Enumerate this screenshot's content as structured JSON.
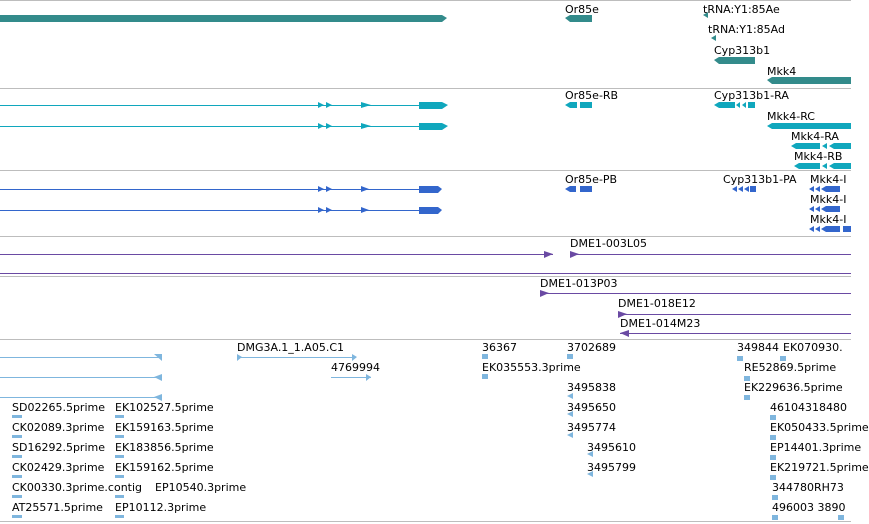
{
  "colors": {
    "gene": "#338b8b",
    "transcript": "#10a7bd",
    "protein": "#3366cc",
    "clone": "#6a4aa3",
    "est": "#7fb6de",
    "border": "#bdbdbd"
  },
  "gene_track": {
    "labels": [
      "Or85e",
      "tRNA:Y1:85Ae",
      "tRNA:Y1:85Ad",
      "Cyp313b1",
      "Mkk4"
    ]
  },
  "transcript_track": {
    "labels": [
      "Or85e-RB",
      "Cyp313b1-RA",
      "Mkk4-RC",
      "Mkk4-RA",
      "Mkk4-RB"
    ]
  },
  "protein_track": {
    "labels": [
      "Or85e-PB",
      "Cyp313b1-PA",
      "Mkk4-I",
      "Mkk4-I",
      "Mkk4-I"
    ]
  },
  "clone_track_1": {
    "labels": [
      "DME1-003L05"
    ]
  },
  "clone_track_2": {
    "labels": [
      "DME1-013P03",
      "DME1-018E12",
      "DME1-014M23"
    ]
  },
  "est_track": {
    "labels": [
      "DMG3A.1_1.A05.C1",
      "4769994",
      "36367",
      "EK035553.3prime",
      "3702689",
      "349844",
      "EK070930.",
      "RE52869.5prime",
      "EK229636.5prime",
      "3495838",
      "3495650",
      "3495774",
      "3495610",
      "3495799",
      "SD02265.5prime",
      "EK102527.5prime",
      "CK02089.3prime",
      "EK159163.5prime",
      "SD16292.5prime",
      "EK183856.5prime",
      "CK02429.3prime",
      "EK159162.5prime",
      "CK00330.3prime.contig",
      "EP10540.3prime",
      "AT25571.5prime",
      "EP10112.3prime",
      "46104318480",
      "EK050433.5prime",
      "EP14401.3prime",
      "EK219721.5prime",
      "344780RH73",
      "496003 3890"
    ]
  }
}
